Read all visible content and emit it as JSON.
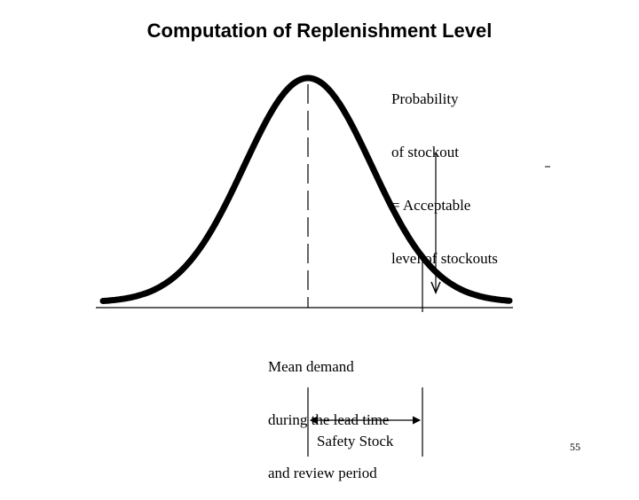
{
  "title": "Computation of Replenishment Level",
  "labels": {
    "probability": [
      "Probability",
      "of stockout",
      "= Acceptable",
      "level of stockouts"
    ],
    "mean": [
      "Mean demand",
      "during the lead time",
      "and review period"
    ],
    "safety_stock": "Safety Stock"
  },
  "page_number": "55",
  "colors": {
    "curve": "#000000",
    "background": "#ffffff"
  }
}
